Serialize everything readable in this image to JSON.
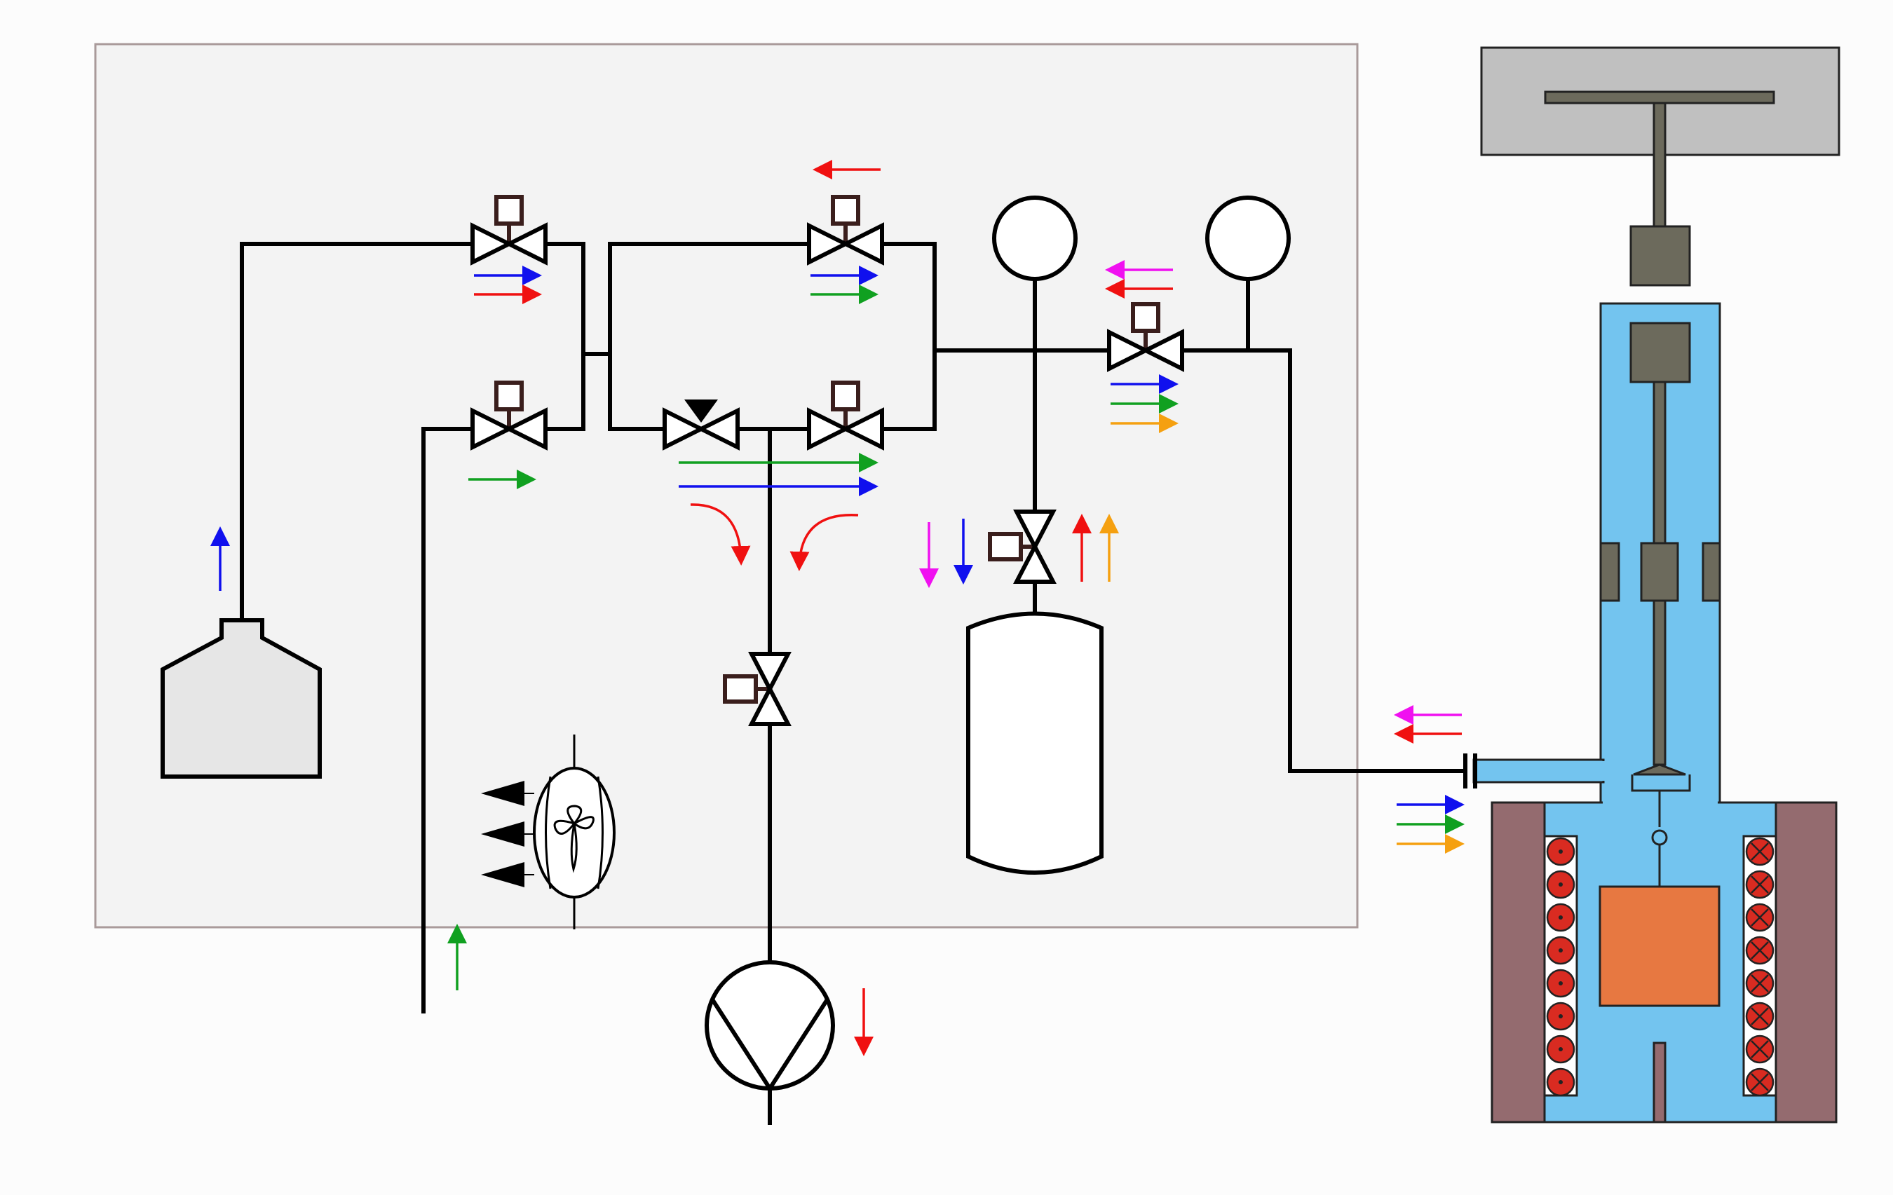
{
  "colors": {
    "background": "#fcfcfc",
    "enclosure_fill": "#f3f3f3",
    "enclosure_stroke": "#a99a9a",
    "pipe": "#000000",
    "actuator": "#3a1e1c",
    "chamber_blue": "#73c4ef",
    "furnace_wall": "#946b6f",
    "heater_coil": "#d92b21",
    "sample": "#e77841",
    "mechanism_gray": "#6c6a5c",
    "top_housing": "#c0c0c0",
    "flask_fill": "#e6e6e6",
    "arrow_red": "#f01010",
    "arrow_blue": "#1010ee",
    "arrow_green": "#10a020",
    "arrow_orange": "#f5a010",
    "arrow_magenta": "#f010f0"
  },
  "icons": {
    "solenoid_valve": "valve-bowtie-with-square-actuator",
    "manual_valve": "valve-bowtie-with-triangle",
    "pressure_gauge": "circle-gauge",
    "vacuum_pump": "pump-circle-with-v",
    "fan": "fan-propeller",
    "gas_flask": "flask-bottle",
    "storage_tank": "cylinder-tank",
    "furnace": "furnace-chamber",
    "feedthrough": "flange-connector"
  }
}
